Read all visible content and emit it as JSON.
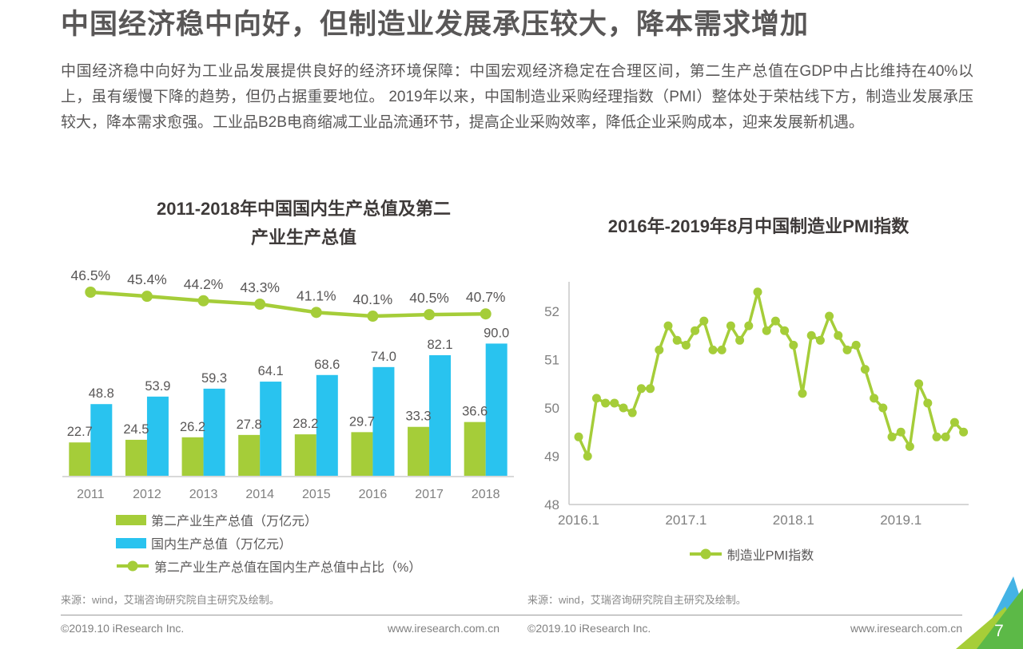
{
  "page": {
    "title": "中国经济稳中向好，但制造业发展承压较大，降本需求增加",
    "intro": "中国经济稳中向好为工业品发展提供良好的经济环境保障：中国宏观经济稳定在合理区间，第二生产总值在GDP中占比维持在40%以上，虽有缓慢下降的趋势，但仍占据重要地位。 2019年以来，中国制造业采购经理指数（PMI）整体处于荣枯线下方，制造业发展承压较大，降本需求愈强。工业品B2B电商缩减工业品流通环节，提高企业采购效率，降低企业采购成本，迎来发展新机遇。"
  },
  "source_note": "来源：wind，艾瑞咨询研究院自主研究及绘制。",
  "footer": {
    "copyright": "©2019.10 iResearch Inc.",
    "website": "www.iresearch.com.cn",
    "page_number": "7"
  },
  "colors": {
    "accent_green": "#a5cd39",
    "accent_blue": "#29c3ef",
    "text_dark": "#595757",
    "text_gray": "#808080",
    "axis_gray": "#c9c9c9",
    "baseline_gray": "#d9d9d9",
    "corner_blue": "#44b3e5",
    "corner_green": "#5cb947",
    "corner_dark_green": "#52b348",
    "corner_lime": "#a6ce38"
  },
  "chart_data": [
    {
      "id": "gdp",
      "type": "bar",
      "title": "2011-2018年中国国内生产总值及第二产业生产总值",
      "title_lines": [
        "2011-2018年中国国内生产总值及第二",
        "产业生产总值"
      ],
      "categories": [
        "2011",
        "2012",
        "2013",
        "2014",
        "2015",
        "2016",
        "2017",
        "2018"
      ],
      "ylim": [
        0,
        100
      ],
      "grid": false,
      "legend_position": "bottom-left",
      "series": [
        {
          "name": "第二产业生产总值（万亿元）",
          "type": "bar",
          "color": "#a5cd39",
          "values": [
            22.7,
            24.5,
            26.2,
            27.8,
            28.2,
            29.7,
            33.3,
            36.6
          ]
        },
        {
          "name": "国内生产总值（万亿元）",
          "type": "bar",
          "color": "#29c3ef",
          "values": [
            48.8,
            53.9,
            59.3,
            64.1,
            68.6,
            74.0,
            82.1,
            90.0
          ]
        },
        {
          "name": "第二产业生产总值在国内生产总值中占比（%）",
          "type": "line",
          "color": "#a5cd39",
          "unit": "%",
          "values": [
            46.5,
            45.4,
            44.2,
            43.3,
            41.1,
            40.1,
            40.5,
            40.7
          ],
          "labels": [
            "46.5%",
            "45.4%",
            "44.2%",
            "43.3%",
            "41.1%",
            "40.1%",
            "40.5%",
            "40.7%"
          ]
        }
      ]
    },
    {
      "id": "pmi",
      "type": "line",
      "title": "2016年-2019年8月中国制造业PMI指数",
      "x_tick_labels": [
        "2016.1",
        "2017.1",
        "2018.1",
        "2019.1"
      ],
      "x_tick_indices": [
        0,
        12,
        24,
        36
      ],
      "yticks": [
        48,
        49,
        50,
        51,
        52
      ],
      "ylim": [
        48,
        52.6
      ],
      "grid": false,
      "legend_position": "bottom-center",
      "series": [
        {
          "name": "制造业PMI指数",
          "color": "#a5cd39",
          "values": [
            49.4,
            49.0,
            50.2,
            50.1,
            50.1,
            50.0,
            49.9,
            50.4,
            50.4,
            51.2,
            51.7,
            51.4,
            51.3,
            51.6,
            51.8,
            51.2,
            51.2,
            51.7,
            51.4,
            51.7,
            52.4,
            51.6,
            51.8,
            51.6,
            51.3,
            50.3,
            51.5,
            51.4,
            51.9,
            51.5,
            51.2,
            51.3,
            50.8,
            50.2,
            50.0,
            49.4,
            49.5,
            49.2,
            50.5,
            50.1,
            49.4,
            49.4,
            49.7,
            49.5
          ]
        }
      ]
    }
  ]
}
